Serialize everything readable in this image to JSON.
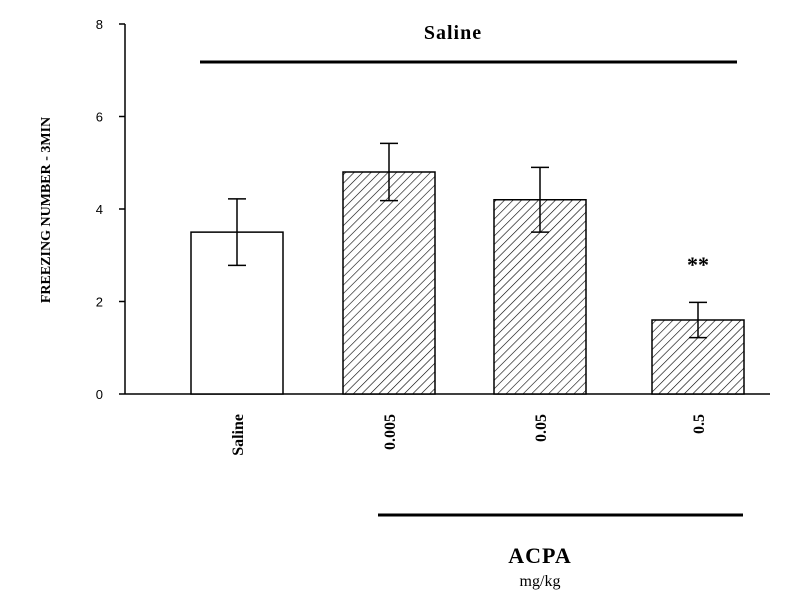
{
  "chart_data": {
    "type": "bar",
    "title": "",
    "xlabel": "",
    "ylabel": "FREEZING NUMBER - 3MIN",
    "ylim": [
      0,
      8
    ],
    "yticks": [
      0,
      2,
      4,
      6,
      8
    ],
    "categories": [
      "Saline",
      "0.005",
      "0.05",
      "0.5"
    ],
    "values": [
      3.5,
      4.8,
      4.2,
      1.6
    ],
    "errors": [
      0.72,
      0.62,
      0.7,
      0.38
    ],
    "fills": [
      "open",
      "hatched",
      "hatched",
      "hatched"
    ],
    "annotations": [
      {
        "category": "0.5",
        "text": "**"
      }
    ],
    "group_labels": {
      "top": "Saline",
      "bottom": "ACPA",
      "bottom_unit": "mg/kg"
    },
    "colors": {
      "bar_edge": "#000000",
      "background": "#ffffff"
    },
    "grid": false,
    "legend": "none"
  }
}
